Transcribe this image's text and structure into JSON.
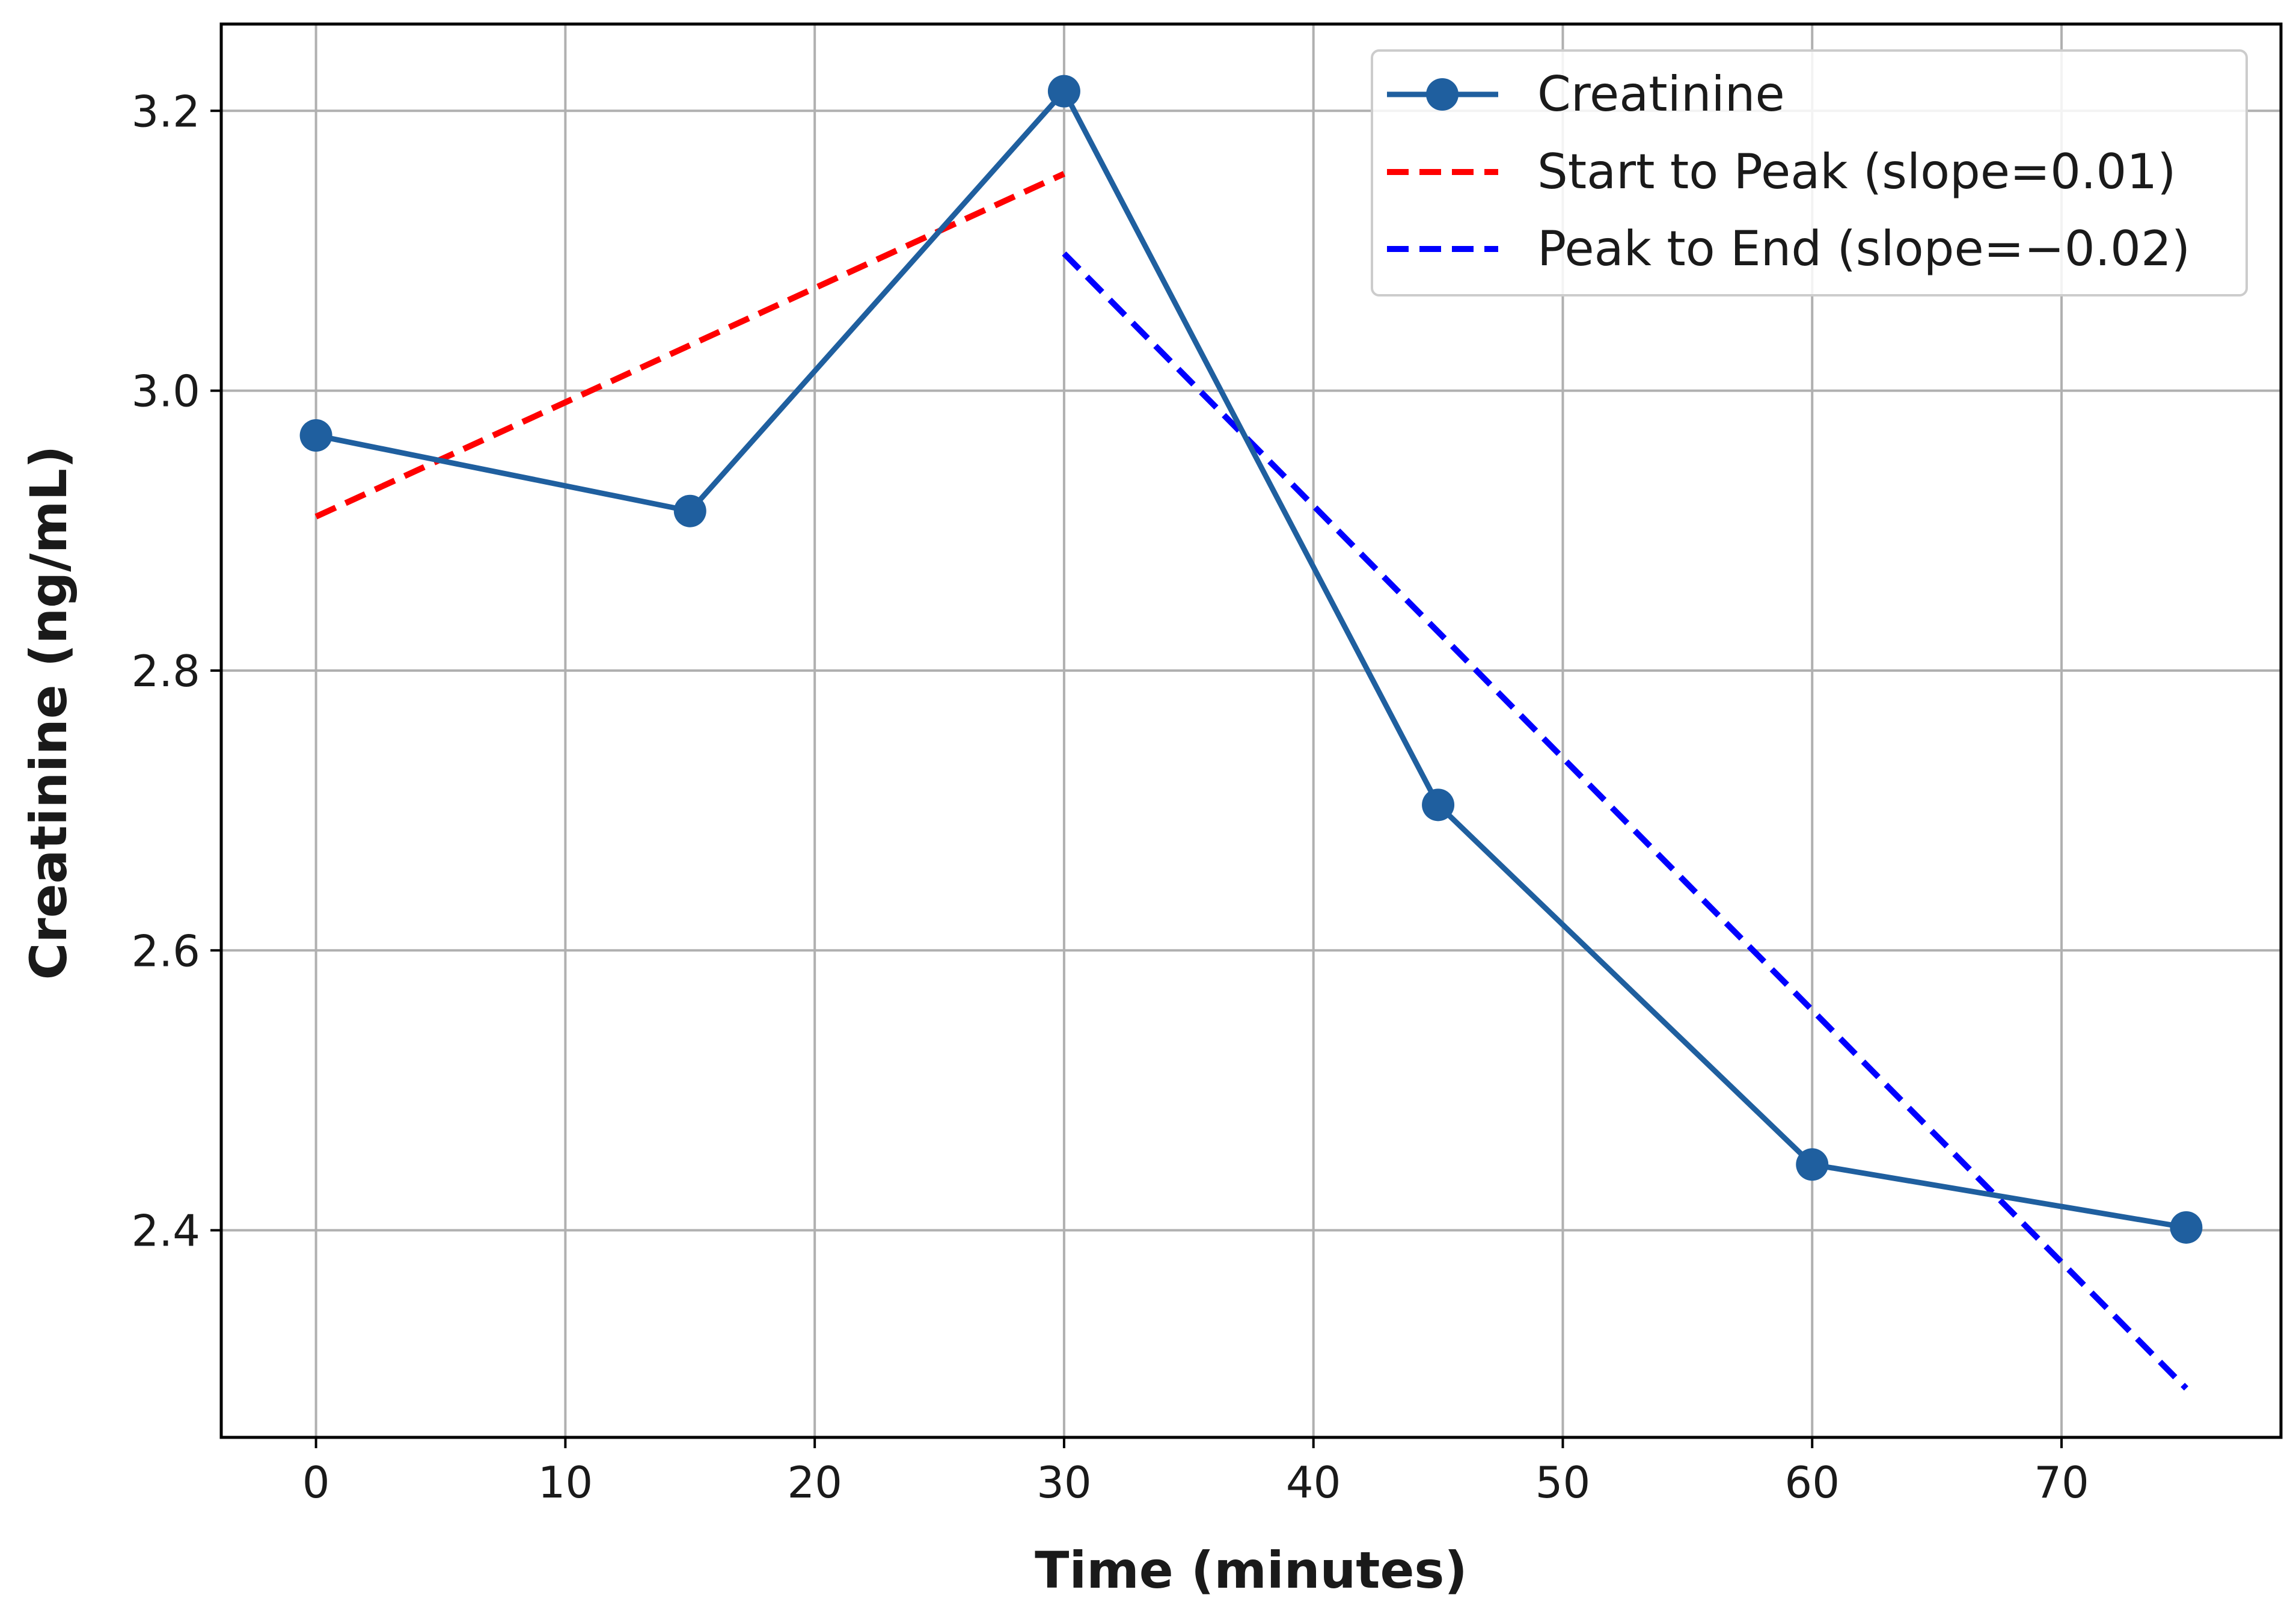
{
  "chart_data": {
    "type": "line",
    "title": "",
    "xlabel": "Time (minutes)",
    "ylabel": "Creatinine (ng/mL)",
    "xlim": [
      -3.8,
      78.8
    ],
    "ylim": [
      2.252,
      3.262
    ],
    "xticks": [
      0,
      10,
      20,
      30,
      40,
      50,
      60,
      70
    ],
    "yticks": [
      2.4,
      2.6,
      2.8,
      3.0,
      3.2
    ],
    "ytick_labels": [
      "2.4",
      "2.6",
      "2.8",
      "3.0",
      "3.2"
    ],
    "grid": true,
    "legend_position": "top-right",
    "series": [
      {
        "name": "Creatinine",
        "style": "solid-marker",
        "color": "#1f5f9f",
        "x": [
          0,
          15,
          30,
          45,
          60,
          75
        ],
        "y": [
          2.968,
          2.914,
          3.214,
          2.704,
          2.447,
          2.402
        ]
      },
      {
        "name": "Start to Peak (slope=0.01)",
        "style": "dashed",
        "color": "#ff0000",
        "x": [
          0,
          30
        ],
        "y": [
          2.91,
          3.155
        ]
      },
      {
        "name": "Peak to End (slope=−0.02)",
        "style": "dashed",
        "color": "#0000ff",
        "x": [
          30,
          75
        ],
        "y": [
          3.098,
          2.287
        ]
      }
    ]
  }
}
